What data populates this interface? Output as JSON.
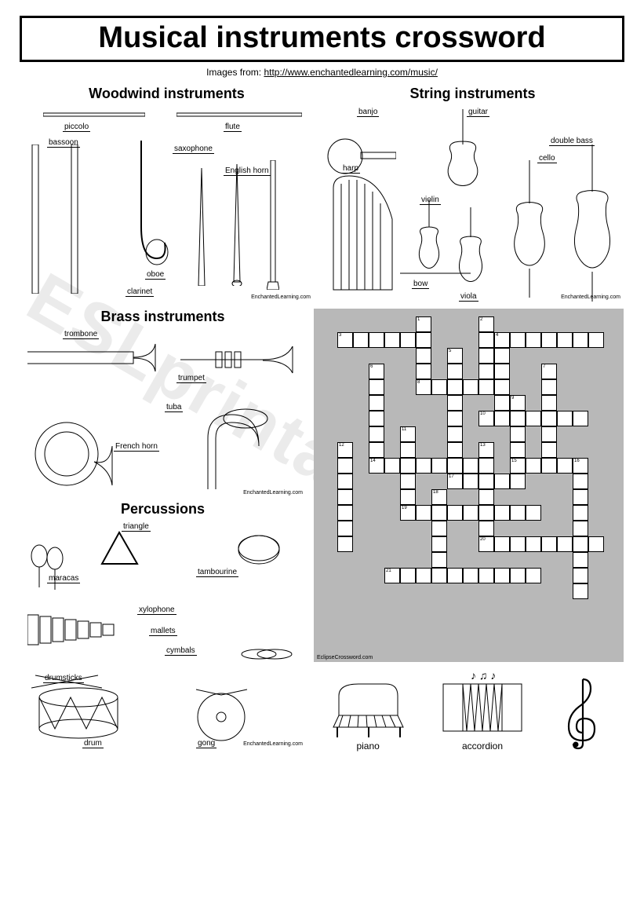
{
  "title": "Musical instruments crossword",
  "subtitle_prefix": "Images from: ",
  "subtitle_link": "http://www.enchantedlearning.com/music/",
  "watermark": "ESLprintables.com",
  "credit": "EnchantedLearning.com",
  "cw_credit": "EclipseCrossword.com",
  "sections": {
    "woodwind": {
      "title": "Woodwind instruments",
      "labels": [
        "piccolo",
        "flute",
        "bassoon",
        "saxophone",
        "English horn",
        "oboe",
        "clarinet"
      ]
    },
    "string": {
      "title": "String instruments",
      "labels": [
        "banjo",
        "guitar",
        "harp",
        "double bass",
        "cello",
        "violin",
        "bow",
        "viola"
      ]
    },
    "brass": {
      "title": "Brass instruments",
      "labels": [
        "trombone",
        "trumpet",
        "tuba",
        "French horn"
      ]
    },
    "percussion": {
      "title": "Percussions",
      "labels": [
        "triangle",
        "maracas",
        "tambourine",
        "xylophone",
        "mallets",
        "cymbals",
        "drumsticks",
        "drum",
        "gong"
      ]
    }
  },
  "bottom": {
    "piano": "piano",
    "accordion": "accordion"
  },
  "crossword": {
    "cell_size": 20,
    "bg": "#b8b8b8",
    "cells": [
      {
        "r": 0,
        "c": 6,
        "n": "1"
      },
      {
        "r": 0,
        "c": 10,
        "n": "2"
      },
      {
        "r": 1,
        "c": 1,
        "n": "3"
      },
      {
        "r": 1,
        "c": 2
      },
      {
        "r": 1,
        "c": 3
      },
      {
        "r": 1,
        "c": 4
      },
      {
        "r": 1,
        "c": 5
      },
      {
        "r": 1,
        "c": 6
      },
      {
        "r": 1,
        "c": 10
      },
      {
        "r": 1,
        "c": 11,
        "n": "4"
      },
      {
        "r": 1,
        "c": 12
      },
      {
        "r": 1,
        "c": 13
      },
      {
        "r": 1,
        "c": 14
      },
      {
        "r": 1,
        "c": 15
      },
      {
        "r": 1,
        "c": 16
      },
      {
        "r": 1,
        "c": 17
      },
      {
        "r": 2,
        "c": 6
      },
      {
        "r": 2,
        "c": 8,
        "n": "5"
      },
      {
        "r": 2,
        "c": 10
      },
      {
        "r": 2,
        "c": 11
      },
      {
        "r": 3,
        "c": 3,
        "n": "6"
      },
      {
        "r": 3,
        "c": 6
      },
      {
        "r": 3,
        "c": 8
      },
      {
        "r": 3,
        "c": 10
      },
      {
        "r": 3,
        "c": 11
      },
      {
        "r": 3,
        "c": 14,
        "n": "7"
      },
      {
        "r": 4,
        "c": 3
      },
      {
        "r": 4,
        "c": 6,
        "n": "8"
      },
      {
        "r": 4,
        "c": 7
      },
      {
        "r": 4,
        "c": 8
      },
      {
        "r": 4,
        "c": 9
      },
      {
        "r": 4,
        "c": 10
      },
      {
        "r": 4,
        "c": 11
      },
      {
        "r": 4,
        "c": 14
      },
      {
        "r": 5,
        "c": 3
      },
      {
        "r": 5,
        "c": 8
      },
      {
        "r": 5,
        "c": 11
      },
      {
        "r": 5,
        "c": 12,
        "n": "9"
      },
      {
        "r": 5,
        "c": 14
      },
      {
        "r": 6,
        "c": 3
      },
      {
        "r": 6,
        "c": 8
      },
      {
        "r": 6,
        "c": 10,
        "n": "10"
      },
      {
        "r": 6,
        "c": 11
      },
      {
        "r": 6,
        "c": 12
      },
      {
        "r": 6,
        "c": 13
      },
      {
        "r": 6,
        "c": 14
      },
      {
        "r": 6,
        "c": 15
      },
      {
        "r": 6,
        "c": 16
      },
      {
        "r": 7,
        "c": 3
      },
      {
        "r": 7,
        "c": 5,
        "n": "11"
      },
      {
        "r": 7,
        "c": 8
      },
      {
        "r": 7,
        "c": 12
      },
      {
        "r": 7,
        "c": 14
      },
      {
        "r": 8,
        "c": 1,
        "n": "12"
      },
      {
        "r": 8,
        "c": 3
      },
      {
        "r": 8,
        "c": 5
      },
      {
        "r": 8,
        "c": 8
      },
      {
        "r": 8,
        "c": 10,
        "n": "13"
      },
      {
        "r": 8,
        "c": 12
      },
      {
        "r": 8,
        "c": 14
      },
      {
        "r": 9,
        "c": 1
      },
      {
        "r": 9,
        "c": 3,
        "n": "14"
      },
      {
        "r": 9,
        "c": 4
      },
      {
        "r": 9,
        "c": 5
      },
      {
        "r": 9,
        "c": 6
      },
      {
        "r": 9,
        "c": 7
      },
      {
        "r": 9,
        "c": 8
      },
      {
        "r": 9,
        "c": 9
      },
      {
        "r": 9,
        "c": 10
      },
      {
        "r": 9,
        "c": 12,
        "n": "15"
      },
      {
        "r": 9,
        "c": 13
      },
      {
        "r": 9,
        "c": 14
      },
      {
        "r": 9,
        "c": 15
      },
      {
        "r": 9,
        "c": 16,
        "n": "16"
      },
      {
        "r": 10,
        "c": 1
      },
      {
        "r": 10,
        "c": 5
      },
      {
        "r": 10,
        "c": 8,
        "n": "17"
      },
      {
        "r": 10,
        "c": 9
      },
      {
        "r": 10,
        "c": 10
      },
      {
        "r": 10,
        "c": 11
      },
      {
        "r": 10,
        "c": 12
      },
      {
        "r": 10,
        "c": 16
      },
      {
        "r": 11,
        "c": 1
      },
      {
        "r": 11,
        "c": 5
      },
      {
        "r": 11,
        "c": 7,
        "n": "18"
      },
      {
        "r": 11,
        "c": 10
      },
      {
        "r": 11,
        "c": 16
      },
      {
        "r": 12,
        "c": 1
      },
      {
        "r": 12,
        "c": 5,
        "n": "19"
      },
      {
        "r": 12,
        "c": 6
      },
      {
        "r": 12,
        "c": 7
      },
      {
        "r": 12,
        "c": 8
      },
      {
        "r": 12,
        "c": 9
      },
      {
        "r": 12,
        "c": 10
      },
      {
        "r": 12,
        "c": 11
      },
      {
        "r": 12,
        "c": 12
      },
      {
        "r": 12,
        "c": 13
      },
      {
        "r": 12,
        "c": 16
      },
      {
        "r": 13,
        "c": 1
      },
      {
        "r": 13,
        "c": 7
      },
      {
        "r": 13,
        "c": 10
      },
      {
        "r": 13,
        "c": 16
      },
      {
        "r": 14,
        "c": 1
      },
      {
        "r": 14,
        "c": 7
      },
      {
        "r": 14,
        "c": 10,
        "n": "20"
      },
      {
        "r": 14,
        "c": 11
      },
      {
        "r": 14,
        "c": 12
      },
      {
        "r": 14,
        "c": 13
      },
      {
        "r": 14,
        "c": 14
      },
      {
        "r": 14,
        "c": 15
      },
      {
        "r": 14,
        "c": 16
      },
      {
        "r": 14,
        "c": 17
      },
      {
        "r": 15,
        "c": 7
      },
      {
        "r": 15,
        "c": 16
      },
      {
        "r": 16,
        "c": 4,
        "n": "21"
      },
      {
        "r": 16,
        "c": 5
      },
      {
        "r": 16,
        "c": 6
      },
      {
        "r": 16,
        "c": 7
      },
      {
        "r": 16,
        "c": 8
      },
      {
        "r": 16,
        "c": 9
      },
      {
        "r": 16,
        "c": 10
      },
      {
        "r": 16,
        "c": 11
      },
      {
        "r": 16,
        "c": 12
      },
      {
        "r": 16,
        "c": 13
      },
      {
        "r": 16,
        "c": 16
      },
      {
        "r": 17,
        "c": 16
      }
    ]
  }
}
